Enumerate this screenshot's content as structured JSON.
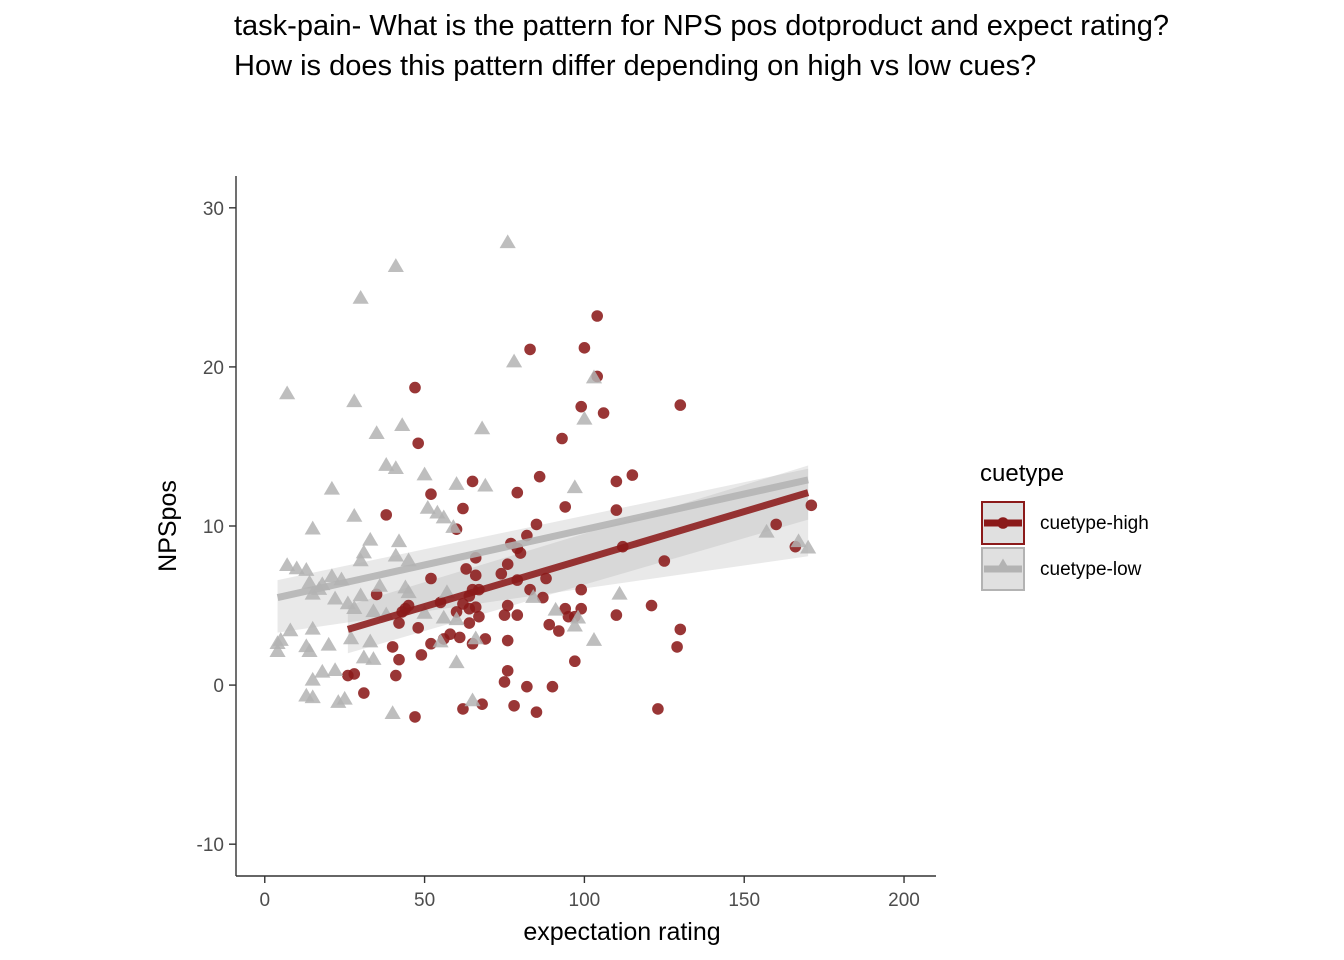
{
  "chart_data": {
    "type": "scatter",
    "title_lines": [
      "task-pain- What is the pattern for NPS pos dotproduct and expect rating?",
      "How is does this pattern differ depending on high vs low cues?"
    ],
    "xlabel": "expectation rating",
    "ylabel": "NPSpos",
    "xlim": [
      -9,
      210
    ],
    "ylim": [
      -12,
      32
    ],
    "x_ticks": [
      0,
      50,
      100,
      150,
      200
    ],
    "y_ticks": [
      -10,
      0,
      10,
      20,
      30
    ],
    "grid": false,
    "legend": {
      "title": "cuetype",
      "position": "right"
    },
    "series": [
      {
        "name": "cuetype-high",
        "color": "#8b1a1a",
        "marker": "circle",
        "fit": {
          "x": [
            26,
            170
          ],
          "y": [
            3.5,
            12.1
          ],
          "ci_low": [
            2.0,
            10.4
          ],
          "ci_high": [
            5.0,
            13.8
          ]
        },
        "points": [
          [
            47,
            18.7
          ],
          [
            48,
            15.2
          ],
          [
            52,
            12.0
          ],
          [
            38,
            10.7
          ],
          [
            62,
            11.1
          ],
          [
            65,
            12.8
          ],
          [
            79,
            12.1
          ],
          [
            83,
            21.1
          ],
          [
            86,
            13.1
          ],
          [
            93,
            15.5
          ],
          [
            94,
            11.2
          ],
          [
            100,
            21.2
          ],
          [
            99,
            17.5
          ],
          [
            104,
            23.2
          ],
          [
            104,
            19.4
          ],
          [
            106,
            17.1
          ],
          [
            110,
            12.8
          ],
          [
            110,
            11.0
          ],
          [
            115,
            13.2
          ],
          [
            112,
            8.7
          ],
          [
            125,
            7.8
          ],
          [
            130,
            17.6
          ],
          [
            160,
            10.1
          ],
          [
            166,
            8.7
          ],
          [
            171,
            11.3
          ],
          [
            77,
            8.9
          ],
          [
            79,
            8.6
          ],
          [
            82,
            9.4
          ],
          [
            85,
            10.1
          ],
          [
            80,
            8.3
          ],
          [
            88,
            6.7
          ],
          [
            76,
            7.6
          ],
          [
            74,
            7.0
          ],
          [
            79,
            6.6
          ],
          [
            83,
            6.0
          ],
          [
            87,
            5.5
          ],
          [
            99,
            6.0
          ],
          [
            99,
            4.8
          ],
          [
            94,
            4.8
          ],
          [
            95,
            4.3
          ],
          [
            97,
            4.3
          ],
          [
            92,
            3.4
          ],
          [
            89,
            3.8
          ],
          [
            110,
            4.4
          ],
          [
            121,
            5.0
          ],
          [
            130,
            3.5
          ],
          [
            129,
            2.4
          ],
          [
            123,
            -1.5
          ],
          [
            97,
            1.5
          ],
          [
            90,
            -0.1
          ],
          [
            85,
            -1.7
          ],
          [
            82,
            -0.1
          ],
          [
            78,
            -1.3
          ],
          [
            75,
            0.2
          ],
          [
            76,
            0.9
          ],
          [
            76,
            2.8
          ],
          [
            75,
            4.4
          ],
          [
            76,
            5.0
          ],
          [
            79,
            4.4
          ],
          [
            67,
            6.0
          ],
          [
            65,
            6.0
          ],
          [
            64,
            5.6
          ],
          [
            63,
            7.3
          ],
          [
            66,
            6.9
          ],
          [
            66,
            8.0
          ],
          [
            60,
            9.8
          ],
          [
            64,
            4.8
          ],
          [
            62,
            5.1
          ],
          [
            60,
            4.6
          ],
          [
            64,
            3.9
          ],
          [
            67,
            4.3
          ],
          [
            66,
            4.9
          ],
          [
            58,
            3.2
          ],
          [
            61,
            3.0
          ],
          [
            65,
            2.6
          ],
          [
            69,
            2.9
          ],
          [
            56,
            2.9
          ],
          [
            52,
            2.6
          ],
          [
            52,
            6.7
          ],
          [
            55,
            5.2
          ],
          [
            49,
            1.9
          ],
          [
            48,
            3.6
          ],
          [
            42,
            1.6
          ],
          [
            41,
            0.6
          ],
          [
            40,
            2.4
          ],
          [
            42,
            3.9
          ],
          [
            43,
            4.6
          ],
          [
            44,
            4.8
          ],
          [
            45,
            5.0
          ],
          [
            35,
            5.7
          ],
          [
            31,
            -0.5
          ],
          [
            28,
            0.7
          ],
          [
            26,
            0.6
          ],
          [
            47,
            -2.0
          ],
          [
            62,
            -1.5
          ],
          [
            68,
            -1.2
          ]
        ]
      },
      {
        "name": "cuetype-low",
        "color": "#b3b3b3",
        "marker": "triangle",
        "fit": {
          "x": [
            4,
            170
          ],
          "y": [
            5.5,
            12.9
          ],
          "ci_low": [
            3.3,
            8.1
          ],
          "ci_high": [
            6.6,
            13.6
          ]
        },
        "points": [
          [
            76,
            27.8
          ],
          [
            41,
            26.3
          ],
          [
            30,
            24.3
          ],
          [
            78,
            20.3
          ],
          [
            103,
            19.3
          ],
          [
            7,
            18.3
          ],
          [
            28,
            17.8
          ],
          [
            100,
            16.7
          ],
          [
            43,
            16.3
          ],
          [
            68,
            16.1
          ],
          [
            35,
            15.8
          ],
          [
            38,
            13.8
          ],
          [
            41,
            13.6
          ],
          [
            50,
            13.2
          ],
          [
            60,
            12.6
          ],
          [
            69,
            12.5
          ],
          [
            97,
            12.4
          ],
          [
            21,
            12.3
          ],
          [
            51,
            11.1
          ],
          [
            54,
            10.8
          ],
          [
            56,
            10.5
          ],
          [
            28,
            10.6
          ],
          [
            59,
            9.9
          ],
          [
            15,
            9.8
          ],
          [
            33,
            9.1
          ],
          [
            42,
            9.0
          ],
          [
            31,
            8.3
          ],
          [
            41,
            8.1
          ],
          [
            45,
            7.8
          ],
          [
            30,
            7.8
          ],
          [
            7,
            7.5
          ],
          [
            10,
            7.3
          ],
          [
            13,
            7.2
          ],
          [
            21,
            6.8
          ],
          [
            24,
            6.6
          ],
          [
            14,
            6.4
          ],
          [
            18,
            6.3
          ],
          [
            36,
            6.2
          ],
          [
            44,
            6.1
          ],
          [
            57,
            5.8
          ],
          [
            15,
            5.7
          ],
          [
            17,
            6.0
          ],
          [
            22,
            5.4
          ],
          [
            26,
            5.1
          ],
          [
            28,
            4.8
          ],
          [
            30,
            5.6
          ],
          [
            34,
            4.6
          ],
          [
            38,
            4.4
          ],
          [
            45,
            5.8
          ],
          [
            50,
            4.5
          ],
          [
            56,
            4.2
          ],
          [
            60,
            4.1
          ],
          [
            84,
            5.5
          ],
          [
            91,
            4.7
          ],
          [
            97,
            3.7
          ],
          [
            98,
            4.2
          ],
          [
            103,
            2.8
          ],
          [
            111,
            5.7
          ],
          [
            157,
            9.6
          ],
          [
            170,
            8.6
          ],
          [
            167,
            9.0
          ],
          [
            4,
            2.6
          ],
          [
            5,
            2.8
          ],
          [
            8,
            3.4
          ],
          [
            13,
            2.4
          ],
          [
            14,
            2.1
          ],
          [
            15,
            3.5
          ],
          [
            20,
            2.5
          ],
          [
            27,
            2.9
          ],
          [
            33,
            2.7
          ],
          [
            31,
            1.7
          ],
          [
            34,
            1.6
          ],
          [
            18,
            0.8
          ],
          [
            22,
            0.9
          ],
          [
            15,
            0.3
          ],
          [
            13,
            -0.7
          ],
          [
            15,
            -0.8
          ],
          [
            23,
            -1.1
          ],
          [
            25,
            -0.9
          ],
          [
            40,
            -1.8
          ],
          [
            55,
            2.7
          ],
          [
            60,
            1.4
          ],
          [
            65,
            -1.0
          ],
          [
            66,
            2.9
          ],
          [
            4,
            2.1
          ]
        ]
      }
    ]
  }
}
